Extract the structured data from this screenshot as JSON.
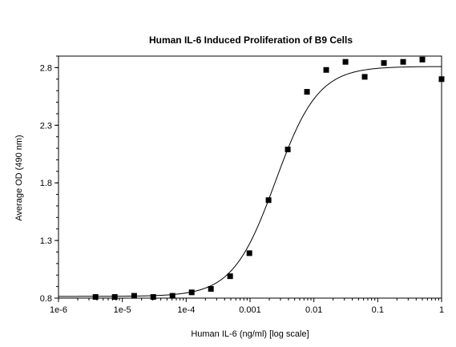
{
  "chart_data": {
    "type": "scatter",
    "title": "Human IL-6 Induced Proliferation of B9 Cells",
    "xlabel": "Human IL-6 (ng/ml) [log scale]",
    "ylabel": "Average OD (490 nm)",
    "xscale": "log",
    "xlim": [
      1e-06,
      1
    ],
    "ylim": [
      0.8,
      2.9
    ],
    "grid": false,
    "x_ticks": [
      {
        "value": 1e-06,
        "label": "1e-6"
      },
      {
        "value": 1e-05,
        "label": "1e-5"
      },
      {
        "value": 0.0001,
        "label": "1e-4"
      },
      {
        "value": 0.001,
        "label": "0.001"
      },
      {
        "value": 0.01,
        "label": "0.01"
      },
      {
        "value": 0.1,
        "label": "0.1"
      },
      {
        "value": 1,
        "label": "1"
      }
    ],
    "y_ticks": [
      {
        "value": 0.8,
        "label": "0.8"
      },
      {
        "value": 1.3,
        "label": "1.3"
      },
      {
        "value": 1.8,
        "label": "1.8"
      },
      {
        "value": 2.3,
        "label": "2.3"
      },
      {
        "value": 2.8,
        "label": "2.8"
      }
    ],
    "series": [
      {
        "marker": "square",
        "color": "#000000",
        "x": [
          3.8e-06,
          7.6e-06,
          1.53e-05,
          3.05e-05,
          6.1e-05,
          0.000122,
          0.000244,
          0.000488,
          0.000977,
          0.00195,
          0.0039,
          0.0078,
          0.0156,
          0.03125,
          0.0625,
          0.125,
          0.25,
          0.5,
          1.0
        ],
        "y": [
          0.81,
          0.81,
          0.82,
          0.81,
          0.82,
          0.85,
          0.88,
          0.99,
          1.19,
          1.65,
          2.09,
          2.59,
          2.78,
          2.85,
          2.72,
          2.84,
          2.85,
          2.87,
          2.7
        ]
      }
    ],
    "fit_curve": {
      "type": "4PL",
      "bottom": 0.815,
      "top": 2.81,
      "ec50": 0.0025,
      "hill": 1.3,
      "color": "#000000"
    }
  }
}
